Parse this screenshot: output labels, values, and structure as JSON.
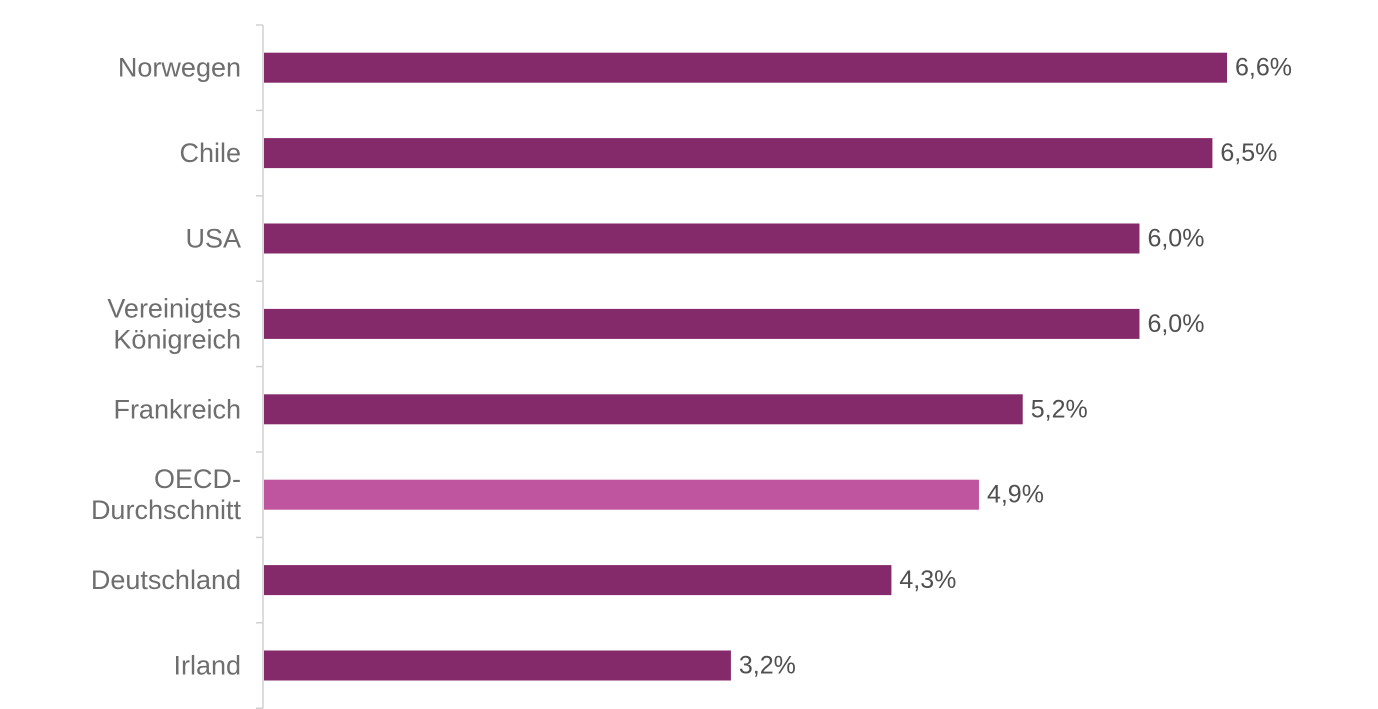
{
  "chart_data": {
    "type": "bar",
    "orientation": "horizontal",
    "title": "",
    "xlabel": "",
    "ylabel": "",
    "xlim": [
      0,
      6.6
    ],
    "grid": false,
    "categories": [
      [
        "Norwegen"
      ],
      [
        "Chile"
      ],
      [
        "USA"
      ],
      [
        "Vereinigtes",
        "Königreich"
      ],
      [
        "Frankreich"
      ],
      [
        "OECD-",
        "Durchschnitt"
      ],
      [
        "Deutschland"
      ],
      [
        "Irland"
      ]
    ],
    "values": [
      6.6,
      6.5,
      6.0,
      6.0,
      5.2,
      4.9,
      4.3,
      3.2
    ],
    "value_labels": [
      "6,6%",
      "6,5%",
      "6,0%",
      "6,0%",
      "5,2%",
      "4,9%",
      "4,3%",
      "3,2%"
    ],
    "highlighted": [
      false,
      false,
      false,
      false,
      false,
      true,
      false,
      false
    ],
    "colors": {
      "bar": "#84296a",
      "highlight": "#c0559f"
    }
  }
}
